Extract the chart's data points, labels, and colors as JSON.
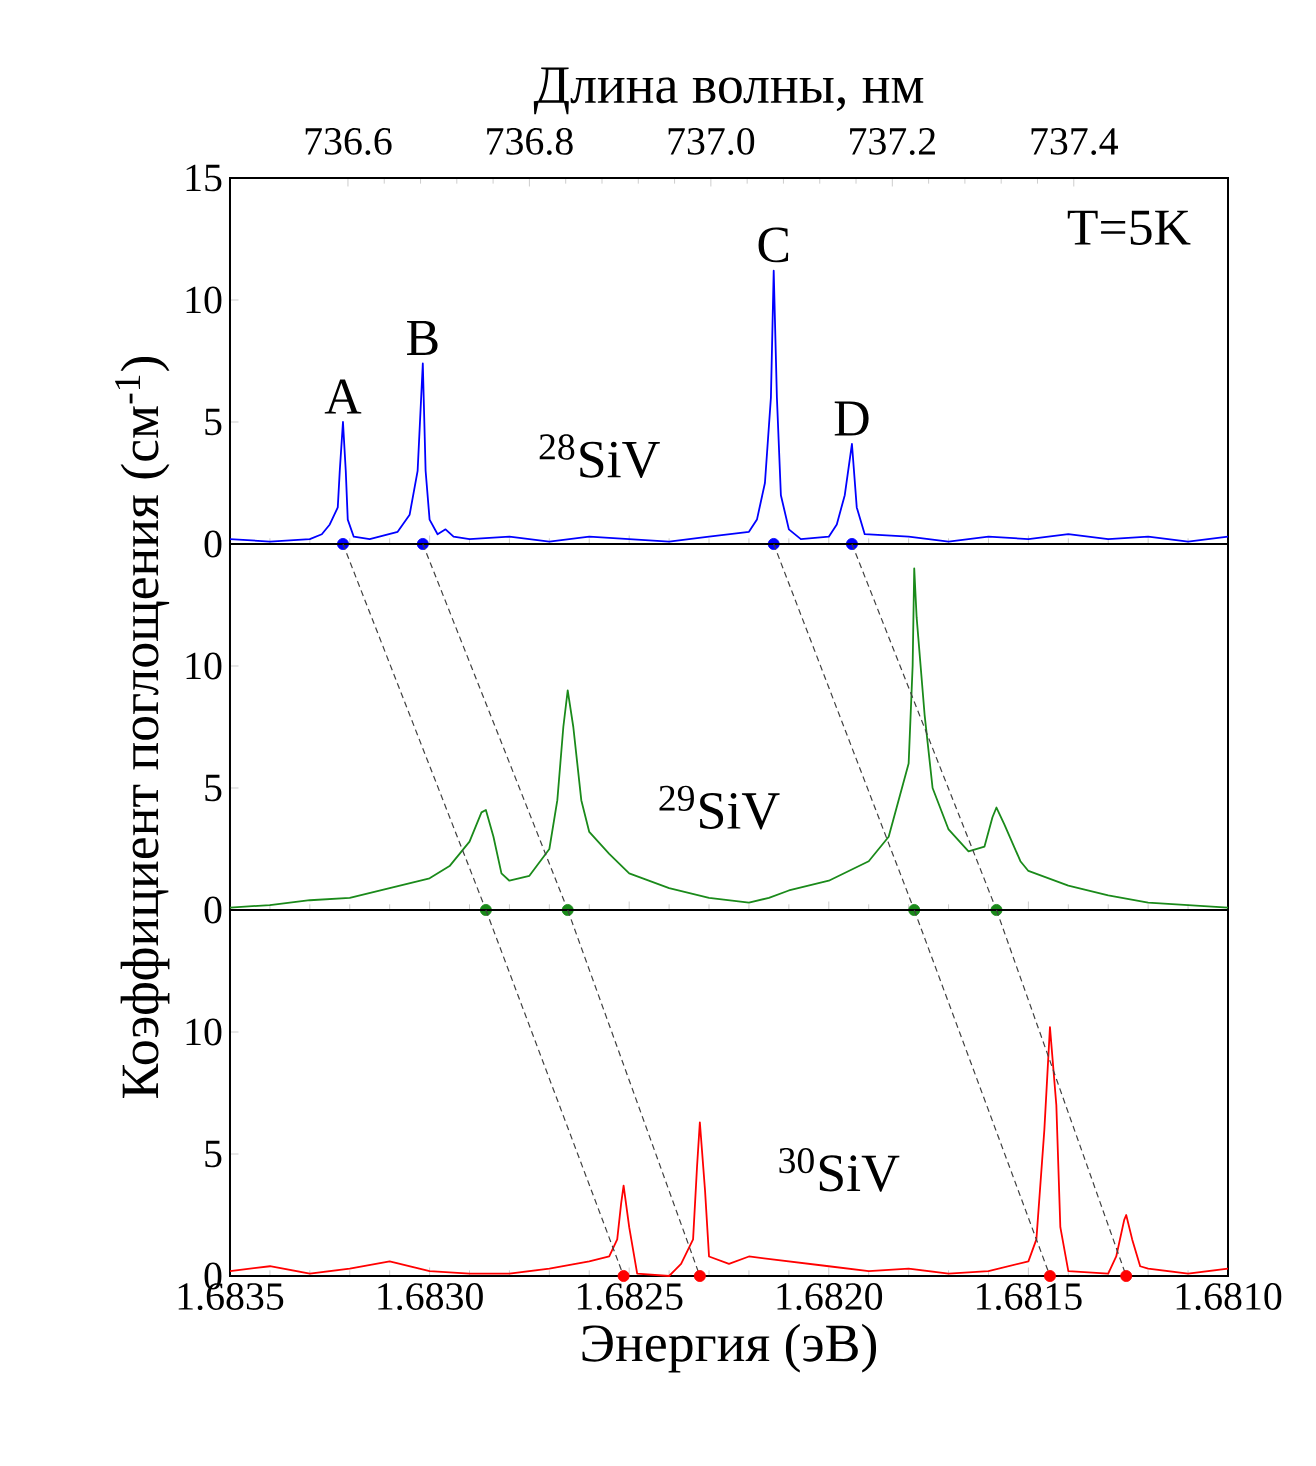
{
  "chart_data": [
    {
      "type": "line",
      "x2label": "Длина волны, нм",
      "xlim": [
        1.6835,
        1.681
      ],
      "ylim": [
        0,
        15
      ],
      "tick_labels": "y",
      "xticks": [
        {
          "value": 1.6835,
          "label": null
        },
        {
          "value": 1.683,
          "label": null
        },
        {
          "value": 1.6825,
          "label": null
        },
        {
          "value": 1.682,
          "label": null
        },
        {
          "value": 1.6815,
          "label": null
        },
        {
          "value": 1.681,
          "label": null
        }
      ],
      "yticks": [
        0,
        5,
        10,
        15
      ],
      "x2lim": [
        736.47,
        737.57
      ],
      "x2ticks": [
        736.6,
        736.8,
        {
          "value": 737.0,
          "label": "737.0"
        },
        737.2,
        737.4
      ],
      "annotations": [
        {
          "text": "A",
          "x": 1.683217,
          "y": 5.0
        },
        {
          "text": "B",
          "x": 1.683017,
          "y": 7.4
        },
        {
          "text": "C",
          "x": 1.682138,
          "y": 11.2
        },
        {
          "text": "D",
          "x": 1.681942,
          "y": 4.1
        },
        "T=5K"
      ],
      "series": [
        {
          "name": "$^{28}$SiV",
          "color": "#0000ff",
          "x": [
            1.6835,
            1.6834,
            1.6833,
            1.68327,
            1.68325,
            1.68323,
            1.683225,
            1.683217,
            1.68321,
            1.683205,
            1.68319,
            1.68315,
            1.68308,
            1.68305,
            1.68303,
            1.683017,
            1.68301,
            1.683,
            1.68298,
            1.68296,
            1.68294,
            1.6829,
            1.6828,
            1.6827,
            1.6826,
            1.6825,
            1.6824,
            1.6823,
            1.6822,
            1.68218,
            1.68216,
            1.682145,
            1.682138,
            1.68213,
            1.68212,
            1.6821,
            1.68207,
            1.682,
            1.68198,
            1.68196,
            1.681942,
            1.68193,
            1.68191,
            1.6818,
            1.6817,
            1.6816,
            1.6815,
            1.6814,
            1.6813,
            1.6812,
            1.6811,
            1.681
          ],
          "values": [
            0.2,
            0.1,
            0.2,
            0.4,
            0.8,
            1.5,
            3.0,
            5.0,
            3.0,
            1.0,
            0.3,
            0.2,
            0.5,
            1.2,
            3.0,
            7.4,
            3.0,
            1.0,
            0.4,
            0.6,
            0.3,
            0.2,
            0.3,
            0.1,
            0.3,
            0.2,
            0.1,
            0.3,
            0.5,
            1.0,
            2.5,
            6.0,
            11.2,
            6.0,
            2.0,
            0.6,
            0.2,
            0.3,
            0.8,
            2.0,
            4.1,
            1.5,
            0.4,
            0.3,
            0.1,
            0.3,
            0.2,
            0.4,
            0.2,
            0.3,
            0.1,
            0.3
          ]
        },
        {
          "type": "scatter",
          "marker": "circle",
          "color": "#0000ff",
          "x": [
            1.683217,
            1.683017,
            1.682138,
            1.681942
          ],
          "values": [
            0,
            0,
            0,
            0
          ]
        }
      ]
    },
    {
      "type": "line",
      "ylabel": "Коэффициент поглощения (см$^{-1}$)",
      "xlim": [
        1.6835,
        1.681
      ],
      "ylim": [
        0,
        15
      ],
      "tick_labels": "y",
      "xticks": [
        {
          "value": 1.6835,
          "label": null
        },
        {
          "value": 1.683,
          "label": null
        },
        {
          "value": 1.6825,
          "label": null
        },
        {
          "value": 1.682,
          "label": null
        },
        {
          "value": 1.6815,
          "label": null
        },
        {
          "value": 1.681,
          "label": null
        }
      ],
      "yticks": [
        0,
        5,
        10,
        {
          "value": 15,
          "label": null
        }
      ],
      "series": [
        {
          "name": "$^{29}$SiV",
          "color": "#1a8a1a",
          "x": [
            1.6835,
            1.6834,
            1.6833,
            1.6832,
            1.6831,
            1.683,
            1.68295,
            1.6829,
            1.68287,
            1.682859,
            1.68284,
            1.68282,
            1.6828,
            1.68275,
            1.6827,
            1.68268,
            1.682665,
            1.682654,
            1.68264,
            1.68262,
            1.6826,
            1.68255,
            1.6825,
            1.6824,
            1.6823,
            1.6822,
            1.68215,
            1.6821,
            1.682,
            1.6819,
            1.68185,
            1.6818,
            1.68179,
            1.681786,
            1.68178,
            1.68176,
            1.68174,
            1.6817,
            1.68165,
            1.68161,
            1.68159,
            1.68158,
            1.68156,
            1.68152,
            1.6815,
            1.6814,
            1.6813,
            1.6812,
            1.6811,
            1.681
          ],
          "values": [
            0.1,
            0.2,
            0.4,
            0.5,
            0.9,
            1.3,
            1.8,
            2.8,
            4.0,
            4.1,
            3.0,
            1.5,
            1.2,
            1.4,
            2.5,
            4.5,
            7.5,
            9.0,
            7.5,
            4.5,
            3.2,
            2.3,
            1.5,
            0.9,
            0.5,
            0.3,
            0.5,
            0.8,
            1.2,
            2.0,
            3.0,
            6.0,
            10.0,
            14.0,
            12.0,
            8.0,
            5.0,
            3.3,
            2.4,
            2.6,
            3.8,
            4.2,
            3.5,
            2.0,
            1.6,
            1.0,
            0.6,
            0.3,
            0.2,
            0.1
          ]
        },
        {
          "type": "scatter",
          "marker": "circle",
          "color": "#1a8a1a",
          "x": [
            1.682859,
            1.682654,
            1.681786,
            1.68158
          ],
          "values": [
            0,
            0,
            0,
            0
          ]
        },
        {
          "line_style": "dashed",
          "color": "#404040",
          "x": [
            1.683217,
            1.682859
          ],
          "values": [
            15,
            0
          ]
        },
        {
          "line_style": "dashed",
          "color": "#404040",
          "x": [
            1.683017,
            1.682654
          ],
          "values": [
            15,
            0
          ]
        },
        {
          "line_style": "dashed",
          "color": "#404040",
          "x": [
            1.682138,
            1.681786
          ],
          "values": [
            15,
            0
          ]
        },
        {
          "line_style": "dashed",
          "color": "#404040",
          "x": [
            1.681942,
            1.68158
          ],
          "values": [
            15,
            0
          ]
        }
      ]
    },
    {
      "type": "line",
      "xlabel": "Энергия (эВ)",
      "xlim": [
        1.6835,
        1.681
      ],
      "ylim": [
        0,
        15
      ],
      "xticks": [
        1.6835,
        {
          "value": 1.683,
          "label": "1.6830"
        },
        1.6825,
        {
          "value": 1.682,
          "label": "1.6820"
        },
        1.6815,
        {
          "value": 1.681,
          "label": "1.6810"
        }
      ],
      "yticks": [
        0,
        5,
        10,
        {
          "value": 15,
          "label": null
        }
      ],
      "series": [
        {
          "name": "$^{30}$SiV",
          "color": "#ff0000",
          "x": [
            1.6835,
            1.6834,
            1.6833,
            1.6832,
            1.6831,
            1.683,
            1.6829,
            1.6828,
            1.6827,
            1.6826,
            1.68255,
            1.68253,
            1.68252,
            1.682514,
            1.6825,
            1.68248,
            1.6824,
            1.68237,
            1.68234,
            1.68233,
            1.682323,
            1.68231,
            1.6823,
            1.68225,
            1.6822,
            1.6821,
            1.682,
            1.6819,
            1.6818,
            1.6817,
            1.6816,
            1.6815,
            1.68148,
            1.68146,
            1.681446,
            1.68143,
            1.68142,
            1.6814,
            1.6813,
            1.68128,
            1.68126,
            1.681255,
            1.68124,
            1.68122,
            1.6812,
            1.6811,
            1.681
          ],
          "values": [
            0.2,
            0.4,
            0.1,
            0.3,
            0.6,
            0.2,
            0.1,
            0.1,
            0.3,
            0.6,
            0.8,
            1.5,
            3.0,
            3.7,
            2.0,
            0.1,
            0.0,
            0.5,
            1.5,
            4.5,
            6.3,
            3.5,
            0.8,
            0.5,
            0.8,
            0.6,
            0.4,
            0.2,
            0.3,
            0.1,
            0.2,
            0.6,
            1.5,
            6.0,
            10.2,
            7.0,
            2.0,
            0.2,
            0.1,
            0.8,
            2.3,
            2.5,
            1.5,
            0.4,
            0.3,
            0.1,
            0.3
          ]
        },
        {
          "type": "scatter",
          "marker": "circle",
          "color": "#ff0000",
          "x": [
            1.682514,
            1.682323,
            1.681446,
            1.681255
          ],
          "values": [
            0,
            0,
            0,
            0
          ]
        },
        {
          "line_style": "dashed",
          "color": "#404040",
          "x": [
            1.682859,
            1.682514
          ],
          "values": [
            15,
            0
          ]
        },
        {
          "line_style": "dashed",
          "color": "#404040",
          "x": [
            1.682654,
            1.682323
          ],
          "values": [
            15,
            0
          ]
        },
        {
          "line_style": "dashed",
          "color": "#404040",
          "x": [
            1.681786,
            1.681446
          ],
          "values": [
            15,
            0
          ]
        },
        {
          "line_style": "dashed",
          "color": "#404040",
          "x": [
            1.68158,
            1.681255
          ],
          "values": [
            15,
            0
          ]
        }
      ]
    }
  ]
}
